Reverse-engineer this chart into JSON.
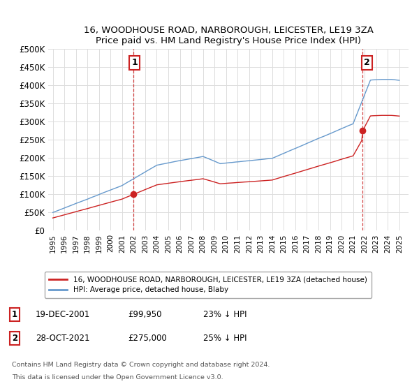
{
  "title": "16, WOODHOUSE ROAD, NARBOROUGH, LEICESTER, LE19 3ZA",
  "subtitle": "Price paid vs. HM Land Registry's House Price Index (HPI)",
  "ylim": [
    0,
    500000
  ],
  "yticks": [
    0,
    50000,
    100000,
    150000,
    200000,
    250000,
    300000,
    350000,
    400000,
    450000,
    500000
  ],
  "ytick_labels": [
    "£0",
    "£50K",
    "£100K",
    "£150K",
    "£200K",
    "£250K",
    "£300K",
    "£350K",
    "£400K",
    "£450K",
    "£500K"
  ],
  "hpi_color": "#6699cc",
  "price_color": "#cc2222",
  "purchase1_year": 2001.97,
  "purchase2_year": 2021.81,
  "marker1_price": 99950,
  "marker2_price": 275000,
  "legend_line1": "16, WOODHOUSE ROAD, NARBOROUGH, LEICESTER, LE19 3ZA (detached house)",
  "legend_line2": "HPI: Average price, detached house, Blaby",
  "footer1": "Contains HM Land Registry data © Crown copyright and database right 2024.",
  "footer2": "This data is licensed under the Open Government Licence v3.0.",
  "table_row1": [
    "1",
    "19-DEC-2001",
    "£99,950",
    "23% ↓ HPI"
  ],
  "table_row2": [
    "2",
    "28-OCT-2021",
    "£275,000",
    "25% ↓ HPI"
  ],
  "background_color": "#ffffff",
  "grid_color": "#dddddd",
  "xlim_left": 1994.6,
  "xlim_right": 2025.8
}
